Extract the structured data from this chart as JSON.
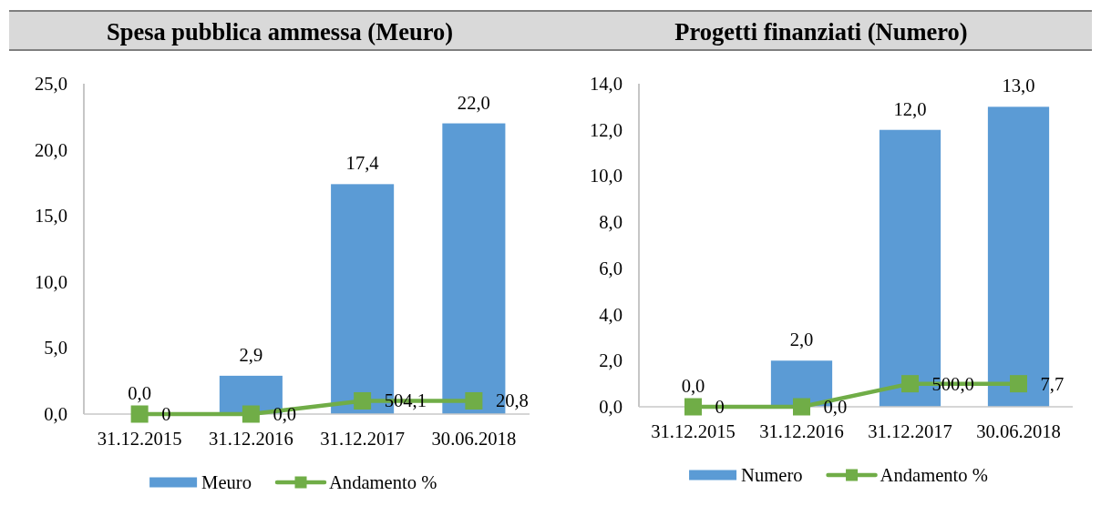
{
  "chart_data": [
    {
      "type": "bar",
      "title": "Spesa pubblica ammessa (Meuro)",
      "categories": [
        "31.12.2015",
        "31.12.2016",
        "31.12.2017",
        "30.06.2018"
      ],
      "series": [
        {
          "name": "Meuro",
          "color": "#5b9bd5",
          "values": [
            0,
            2.9,
            17.4,
            22.0
          ],
          "value_labels": [
            "0,0",
            "2,9",
            "17,4",
            "22,0"
          ]
        },
        {
          "name": "Andamento %",
          "type": "line",
          "color": "#70ad47",
          "values": [
            0,
            0,
            1,
            1
          ]
        }
      ],
      "annotations": [
        {
          "text": "0",
          "x": "31.12.2015",
          "y": 0
        },
        {
          "text": "0,0",
          "x": "31.12.2016",
          "y": 0
        },
        {
          "text": "504,1",
          "x": "31.12.2017",
          "y": 1
        },
        {
          "text": "20,8",
          "x": "30.06.2018",
          "y": 1
        }
      ],
      "ylim": [
        0,
        25
      ],
      "yticks": [
        {
          "value": 0,
          "label": "0,0"
        },
        {
          "value": 5,
          "label": "5,0"
        },
        {
          "value": 10,
          "label": "10,0"
        },
        {
          "value": 15,
          "label": "15,0"
        },
        {
          "value": 20,
          "label": "20,0"
        },
        {
          "value": 25,
          "label": "25,0"
        }
      ],
      "legend": "bottom",
      "marker": "square",
      "line_style": "solid"
    },
    {
      "type": "bar",
      "title": "Progetti finanziati (Numero)",
      "categories": [
        "31.12.2015",
        "31.12.2016",
        "31.12.2017",
        "30.06.2018"
      ],
      "series": [
        {
          "name": "Numero",
          "color": "#5b9bd5",
          "values": [
            0,
            2.0,
            12.0,
            13.0
          ],
          "value_labels": [
            "0,0",
            "2,0",
            "12,0",
            "13,0"
          ]
        },
        {
          "name": "Andamento %",
          "type": "line",
          "color": "#70ad47",
          "values": [
            0,
            0,
            1,
            1
          ]
        }
      ],
      "annotations": [
        {
          "text": "0",
          "x": "31.12.2015",
          "y": 0
        },
        {
          "text": "0,0",
          "x": "31.12.2016",
          "y": 0
        },
        {
          "text": "500,0",
          "x": "31.12.2017",
          "y": 1
        },
        {
          "text": "7,7",
          "x": "30.06.2018",
          "y": 1
        }
      ],
      "ylim": [
        0,
        14
      ],
      "yticks": [
        {
          "value": 0,
          "label": "0,0"
        },
        {
          "value": 2,
          "label": "2,0"
        },
        {
          "value": 4,
          "label": "4,0"
        },
        {
          "value": 6,
          "label": "6,0"
        },
        {
          "value": 8,
          "label": "8,0"
        },
        {
          "value": 10,
          "label": "10,0"
        },
        {
          "value": 12,
          "label": "12,0"
        },
        {
          "value": 14,
          "label": "14,0"
        }
      ],
      "legend": "bottom",
      "marker": "square",
      "line_style": "solid"
    }
  ]
}
